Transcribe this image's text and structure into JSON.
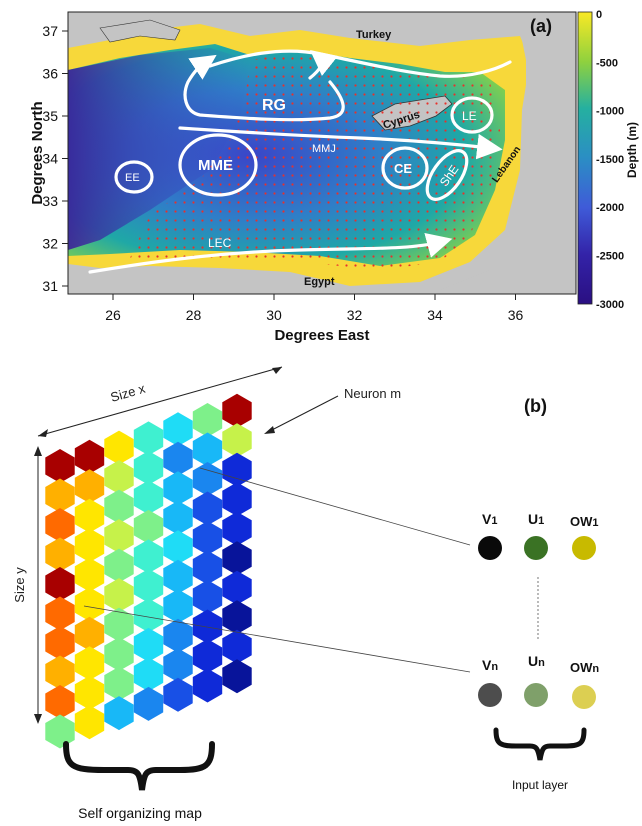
{
  "panel_a": {
    "label": "(a)",
    "xlabel": "Degrees East",
    "ylabel": "Degrees North",
    "x_ticks": [
      "26",
      "28",
      "30",
      "32",
      "34",
      "36"
    ],
    "y_ticks": [
      "37",
      "36",
      "35",
      "34",
      "33",
      "32",
      "31"
    ],
    "colorbar": {
      "label": "Depth (m)",
      "ticks": [
        "0",
        "-500",
        "-1000",
        "-1500",
        "-2000",
        "-2500",
        "-3000"
      ],
      "colors": [
        "#f9e925",
        "#8fd13e",
        "#25b0a0",
        "#2b8ec4",
        "#3f5bd8",
        "#3323a8",
        "#2a0f82"
      ]
    },
    "countries": {
      "turkey": "Turkey",
      "cyprus": "Cyprus",
      "lebanon": "Lebanon",
      "egypt": "Egypt"
    },
    "features": {
      "rg": "RG",
      "mmj": "MMJ",
      "mme": "MME",
      "ee": "EE",
      "ce": "CE",
      "le": "LE",
      "she": "ShE",
      "lec": "LEC"
    },
    "colors": {
      "land": "#c4c4c4",
      "shelf": "#f7d83a",
      "grid_dots": "#e8302a",
      "currents": "#ffffff"
    }
  },
  "panel_b": {
    "label": "(b)",
    "size_x": "Size x",
    "size_y": "Size y",
    "neuron": "Neuron m",
    "map_caption": "Self organizing map",
    "input_caption": "Input layer",
    "inputs_top": {
      "v": "V",
      "u": "U",
      "ow": "OW",
      "sub": "1"
    },
    "inputs_bottom": {
      "v": "V",
      "u": "U",
      "ow": "OW",
      "sub": "n"
    },
    "colors": {
      "v1": "#0a0a0a",
      "u1": "#3a7224",
      "ow1": "#c8ba00",
      "vn": "#4d4d4d",
      "un": "#7fa06a",
      "own": "#dccf52"
    }
  }
}
